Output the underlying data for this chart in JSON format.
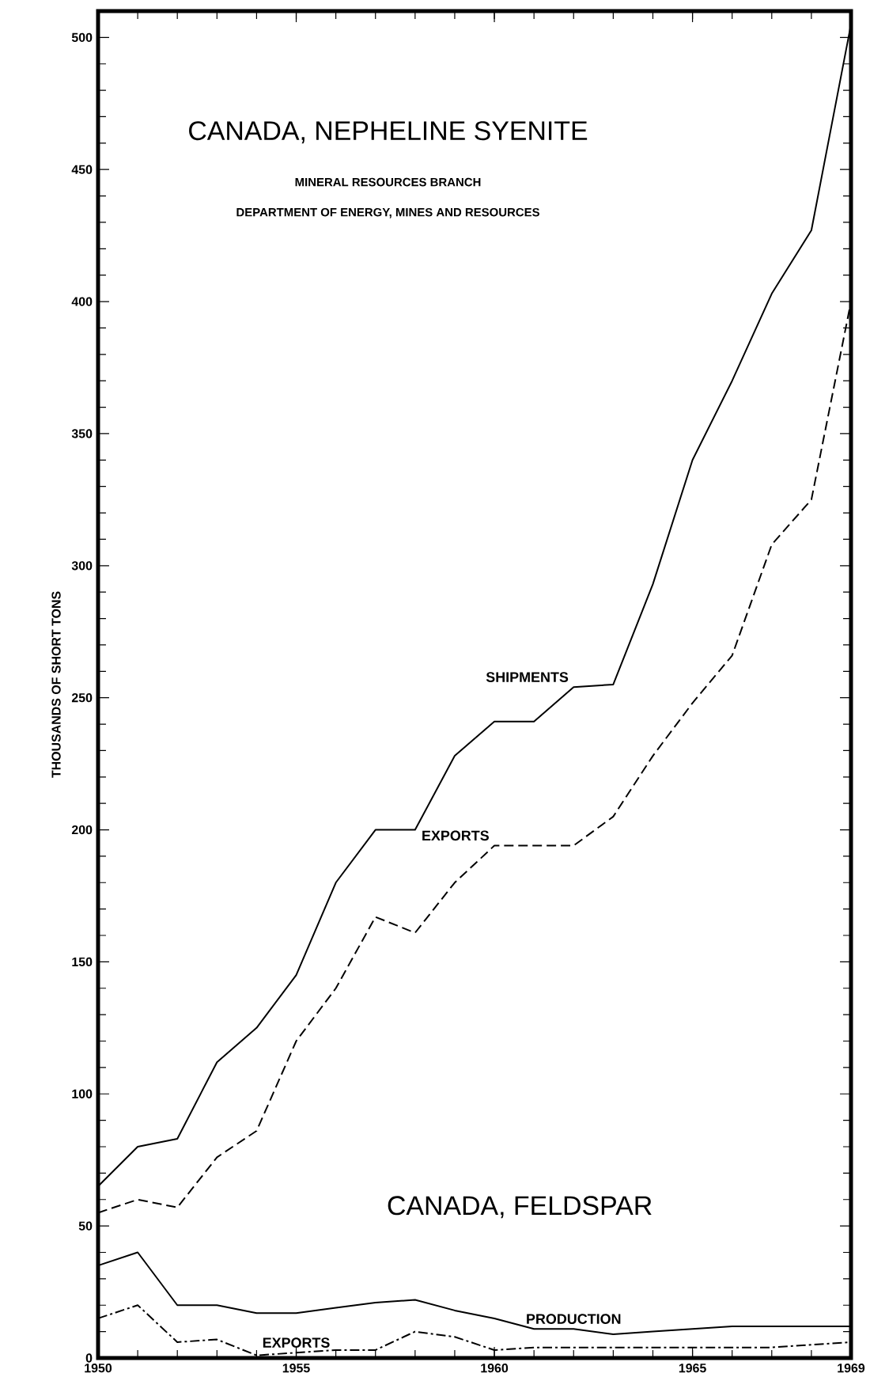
{
  "chart_data": {
    "type": "line",
    "title": "CANADA, NEPHELINE SYENITE",
    "subtitle": "MINERAL RESOURCES BRANCH",
    "annotations": [
      "DEPARTMENT OF ENERGY, MINES AND RESOURCES",
      "CANADA, FELDSPAR"
    ],
    "ylabel": "THOUSANDS OF SHORT TONS",
    "x": [
      1950,
      1951,
      1952,
      1953,
      1954,
      1955,
      1956,
      1957,
      1958,
      1959,
      1960,
      1961,
      1962,
      1963,
      1964,
      1965,
      1966,
      1967,
      1968,
      1969
    ],
    "xlim": [
      1950,
      1969
    ],
    "xticks": [
      1950,
      1955,
      1960,
      1965,
      1969
    ],
    "ylim": [
      0,
      510
    ],
    "yticks": [
      0,
      50,
      100,
      150,
      200,
      250,
      300,
      350,
      400,
      450,
      500
    ],
    "grid": false,
    "series": [
      {
        "name": "SHIPMENTS",
        "color": "#000000",
        "line_style": "solid",
        "values": [
          65,
          80,
          83,
          112,
          125,
          145,
          180,
          200,
          200,
          228,
          241,
          241,
          254,
          255,
          293,
          340,
          370,
          403,
          427,
          505
        ]
      },
      {
        "name": "EXPORTS",
        "color": "#000000",
        "line_style": "dashed",
        "values": [
          55,
          60,
          57,
          76,
          86,
          120,
          140,
          167,
          161,
          180,
          194,
          194,
          194,
          205,
          228,
          248,
          266,
          308,
          325,
          400
        ]
      },
      {
        "name": "PRODUCTION",
        "color": "#000000",
        "line_style": "solid",
        "values": [
          35,
          40,
          20,
          20,
          17,
          17,
          19,
          21,
          22,
          18,
          15,
          11,
          11,
          9,
          10,
          11,
          12,
          12,
          12,
          12
        ]
      },
      {
        "name": "EXPORTS",
        "color": "#000000",
        "line_style": "dashdot",
        "values": [
          15,
          20,
          6,
          7,
          1,
          2,
          3,
          3,
          10,
          8,
          3,
          4,
          4,
          4,
          4,
          4,
          4,
          4,
          5,
          6
        ]
      }
    ]
  }
}
